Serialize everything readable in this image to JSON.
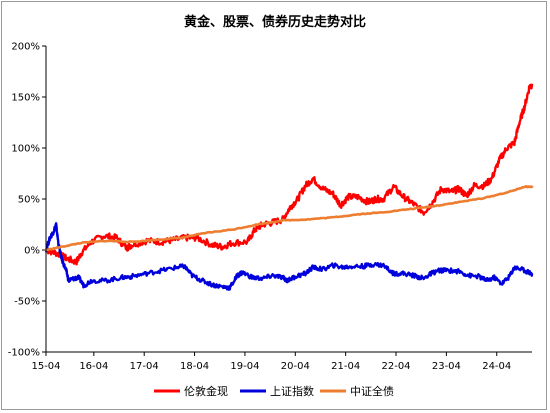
{
  "chart_data": {
    "type": "line",
    "title": "黄金、股票、债券历史走势对比",
    "xlabel": "",
    "ylabel": "",
    "x_ticks": [
      "15-04",
      "16-04",
      "17-04",
      "18-04",
      "19-04",
      "20-04",
      "21-04",
      "22-04",
      "23-04",
      "24-04"
    ],
    "y_ticks": [
      "-100%",
      "-50%",
      "0%",
      "50%",
      "100%",
      "150%",
      "200%"
    ],
    "ylim": [
      -100,
      200
    ],
    "xlim": [
      2015.3,
      2024.95
    ],
    "grid": false,
    "legend_position": "bottom",
    "series": [
      {
        "name": "伦敦金现",
        "color": "#ff0000",
        "points": [
          [
            2015.3,
            0
          ],
          [
            2015.5,
            -3
          ],
          [
            2015.7,
            -8
          ],
          [
            2015.9,
            -12
          ],
          [
            2016.0,
            -3
          ],
          [
            2016.2,
            8
          ],
          [
            2016.45,
            14
          ],
          [
            2016.7,
            12
          ],
          [
            2016.9,
            2
          ],
          [
            2017.0,
            5
          ],
          [
            2017.3,
            9
          ],
          [
            2017.6,
            8
          ],
          [
            2017.85,
            10
          ],
          [
            2018.1,
            12
          ],
          [
            2018.3,
            12
          ],
          [
            2018.6,
            5
          ],
          [
            2018.8,
            3
          ],
          [
            2019.0,
            7
          ],
          [
            2019.3,
            8
          ],
          [
            2019.45,
            20
          ],
          [
            2019.6,
            25
          ],
          [
            2019.8,
            27
          ],
          [
            2020.0,
            30
          ],
          [
            2020.15,
            42
          ],
          [
            2020.3,
            50
          ],
          [
            2020.45,
            63
          ],
          [
            2020.6,
            70
          ],
          [
            2020.8,
            60
          ],
          [
            2021.0,
            55
          ],
          [
            2021.15,
            44
          ],
          [
            2021.3,
            52
          ],
          [
            2021.5,
            52
          ],
          [
            2021.7,
            47
          ],
          [
            2021.85,
            50
          ],
          [
            2022.0,
            50
          ],
          [
            2022.2,
            62
          ],
          [
            2022.4,
            52
          ],
          [
            2022.6,
            45
          ],
          [
            2022.8,
            37
          ],
          [
            2022.95,
            45
          ],
          [
            2023.15,
            60
          ],
          [
            2023.35,
            57
          ],
          [
            2023.5,
            60
          ],
          [
            2023.65,
            53
          ],
          [
            2023.8,
            63
          ],
          [
            2024.0,
            63
          ],
          [
            2024.15,
            70
          ],
          [
            2024.3,
            88
          ],
          [
            2024.45,
            100
          ],
          [
            2024.6,
            105
          ],
          [
            2024.7,
            125
          ],
          [
            2024.8,
            140
          ],
          [
            2024.9,
            160
          ],
          [
            2024.95,
            162
          ]
        ]
      },
      {
        "name": "上证指数",
        "color": "#0000dd",
        "points": [
          [
            2015.3,
            0
          ],
          [
            2015.38,
            12
          ],
          [
            2015.45,
            18
          ],
          [
            2015.5,
            25
          ],
          [
            2015.55,
            5
          ],
          [
            2015.62,
            -10
          ],
          [
            2015.7,
            -20
          ],
          [
            2015.75,
            -30
          ],
          [
            2015.85,
            -28
          ],
          [
            2015.95,
            -27
          ],
          [
            2016.05,
            -35
          ],
          [
            2016.2,
            -30
          ],
          [
            2016.5,
            -30
          ],
          [
            2016.8,
            -27
          ],
          [
            2017.0,
            -26
          ],
          [
            2017.3,
            -23
          ],
          [
            2017.6,
            -20
          ],
          [
            2017.9,
            -17
          ],
          [
            2018.05,
            -16
          ],
          [
            2018.2,
            -25
          ],
          [
            2018.4,
            -30
          ],
          [
            2018.6,
            -34
          ],
          [
            2018.8,
            -36
          ],
          [
            2018.95,
            -37
          ],
          [
            2019.1,
            -25
          ],
          [
            2019.2,
            -22
          ],
          [
            2019.4,
            -27
          ],
          [
            2019.6,
            -28
          ],
          [
            2019.8,
            -25
          ],
          [
            2020.0,
            -27
          ],
          [
            2020.1,
            -30
          ],
          [
            2020.25,
            -26
          ],
          [
            2020.45,
            -23
          ],
          [
            2020.6,
            -17
          ],
          [
            2020.8,
            -19
          ],
          [
            2021.0,
            -15
          ],
          [
            2021.2,
            -17
          ],
          [
            2021.4,
            -16
          ],
          [
            2021.6,
            -16
          ],
          [
            2021.8,
            -14
          ],
          [
            2022.0,
            -15
          ],
          [
            2022.2,
            -23
          ],
          [
            2022.4,
            -23
          ],
          [
            2022.6,
            -25
          ],
          [
            2022.8,
            -28
          ],
          [
            2022.95,
            -23
          ],
          [
            2023.1,
            -20
          ],
          [
            2023.3,
            -20
          ],
          [
            2023.5,
            -21
          ],
          [
            2023.7,
            -25
          ],
          [
            2023.9,
            -26
          ],
          [
            2024.05,
            -30
          ],
          [
            2024.2,
            -27
          ],
          [
            2024.35,
            -33
          ],
          [
            2024.5,
            -26
          ],
          [
            2024.6,
            -17
          ],
          [
            2024.75,
            -19
          ],
          [
            2024.9,
            -22
          ],
          [
            2024.95,
            -24
          ]
        ]
      },
      {
        "name": "中证全债",
        "color": "#ed7d31",
        "points": [
          [
            2015.3,
            0
          ],
          [
            2015.6,
            3
          ],
          [
            2016.0,
            7
          ],
          [
            2016.5,
            9
          ],
          [
            2017.0,
            8
          ],
          [
            2017.5,
            10
          ],
          [
            2018.0,
            12
          ],
          [
            2018.5,
            17
          ],
          [
            2019.0,
            20
          ],
          [
            2019.5,
            25
          ],
          [
            2020.0,
            29
          ],
          [
            2020.5,
            30
          ],
          [
            2021.0,
            32
          ],
          [
            2021.5,
            35
          ],
          [
            2022.0,
            37
          ],
          [
            2022.5,
            40
          ],
          [
            2023.0,
            43
          ],
          [
            2023.5,
            47
          ],
          [
            2024.0,
            51
          ],
          [
            2024.5,
            57
          ],
          [
            2024.8,
            62
          ],
          [
            2024.95,
            62
          ]
        ]
      }
    ]
  }
}
